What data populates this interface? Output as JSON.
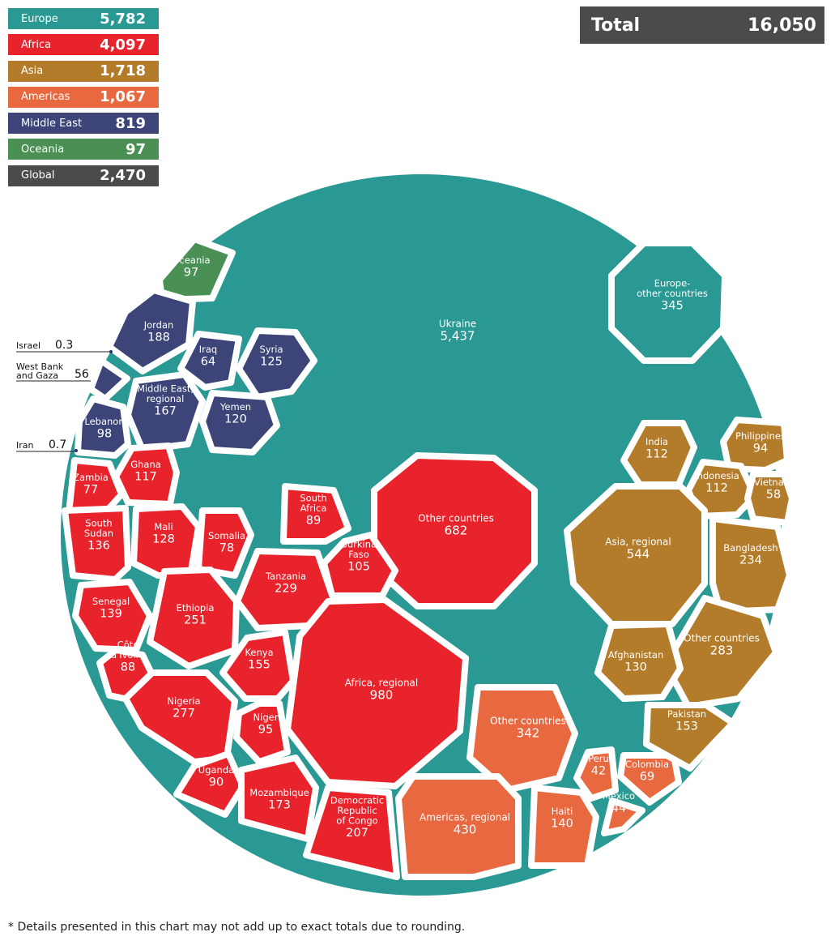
{
  "colors": {
    "Europe": "#2a9893",
    "Africa": "#e8232b",
    "Asia": "#b37c2b",
    "Americas": "#e8683f",
    "Middle East": "#3c4478",
    "Oceania": "#4a9055",
    "Global": "#4a4c4c"
  },
  "legend": [
    {
      "label": "Europe",
      "value": "5,782"
    },
    {
      "label": "Africa",
      "value": "4,097"
    },
    {
      "label": "Asia",
      "value": "1,718"
    },
    {
      "label": "Americas",
      "value": "1,067"
    },
    {
      "label": "Middle East",
      "value": "819"
    },
    {
      "label": "Oceania",
      "value": "97"
    },
    {
      "label": "Global",
      "value": "2,470"
    }
  ],
  "total": {
    "label": "Total",
    "value": "16,050"
  },
  "footnote": "* Details presented in this chart may not add up to exact totals due to rounding.",
  "chart_data": {
    "type": "voronoi-treemap",
    "cells": [
      {
        "region": "Europe",
        "label": "Ukraine",
        "value": 5437
      },
      {
        "region": "Europe",
        "label": "Europe-\nother countries",
        "value": 345
      },
      {
        "region": "Oceania",
        "label": "Oceania",
        "value": 97
      },
      {
        "region": "Middle East",
        "label": "Jordan",
        "value": 188
      },
      {
        "region": "Middle East",
        "label": "Iraq",
        "value": 64
      },
      {
        "region": "Middle East",
        "label": "Syria",
        "value": 125
      },
      {
        "region": "Middle East",
        "label": "Middle East,\nregional",
        "value": 167
      },
      {
        "region": "Middle East",
        "label": "Yemen",
        "value": 120
      },
      {
        "region": "Middle East",
        "label": "Lebanon",
        "value": 98
      },
      {
        "region": "Middle East",
        "label": "West Bank\nand Gaza",
        "value": 56,
        "external": true
      },
      {
        "region": "Middle East",
        "label": "Israel",
        "value": 0.3,
        "external": true
      },
      {
        "region": "Middle East",
        "label": "Iran",
        "value": 0.7,
        "external": true
      },
      {
        "region": "Africa",
        "label": "Zambia",
        "value": 77
      },
      {
        "region": "Africa",
        "label": "Ghana",
        "value": 117
      },
      {
        "region": "Africa",
        "label": "South\nSudan",
        "value": 136
      },
      {
        "region": "Africa",
        "label": "Mali",
        "value": 128
      },
      {
        "region": "Africa",
        "label": "Somalia",
        "value": 78
      },
      {
        "region": "Africa",
        "label": "South\nAfrica",
        "value": 89
      },
      {
        "region": "Africa",
        "label": "Other countries",
        "value": 682
      },
      {
        "region": "Africa",
        "label": "Burkina\nFaso",
        "value": 105
      },
      {
        "region": "Africa",
        "label": "Tanzania",
        "value": 229
      },
      {
        "region": "Africa",
        "label": "Senegal",
        "value": 139
      },
      {
        "region": "Africa",
        "label": "Ethiopia",
        "value": 251
      },
      {
        "region": "Africa",
        "label": "Côte\nd'Ivoire",
        "value": 88
      },
      {
        "region": "Africa",
        "label": "Kenya",
        "value": 155
      },
      {
        "region": "Africa",
        "label": "Africa, regional",
        "value": 980
      },
      {
        "region": "Africa",
        "label": "Nigeria",
        "value": 277
      },
      {
        "region": "Africa",
        "label": "Niger",
        "value": 95
      },
      {
        "region": "Africa",
        "label": "Uganda",
        "value": 90
      },
      {
        "region": "Africa",
        "label": "Mozambique",
        "value": 173
      },
      {
        "region": "Africa",
        "label": "Democratic\nRepublic\nof Congo",
        "value": 207
      },
      {
        "region": "Americas",
        "label": "Other countries",
        "value": 342
      },
      {
        "region": "Americas",
        "label": "Americas, regional",
        "value": 430
      },
      {
        "region": "Americas",
        "label": "Haiti",
        "value": 140
      },
      {
        "region": "Americas",
        "label": "Peru",
        "value": 42
      },
      {
        "region": "Americas",
        "label": "Mexico",
        "value": 44
      },
      {
        "region": "Americas",
        "label": "Colombia",
        "value": 69
      },
      {
        "region": "Asia",
        "label": "India",
        "value": 112
      },
      {
        "region": "Asia",
        "label": "Philippines",
        "value": 94
      },
      {
        "region": "Asia",
        "label": "Indonesia",
        "value": 112
      },
      {
        "region": "Asia",
        "label": "Vietnam",
        "value": 58
      },
      {
        "region": "Asia",
        "label": "Asia, regional",
        "value": 544
      },
      {
        "region": "Asia",
        "label": "Bangladesh",
        "value": 234
      },
      {
        "region": "Asia",
        "label": "Other countries",
        "value": 283
      },
      {
        "region": "Asia",
        "label": "Afghanistan",
        "value": 130
      },
      {
        "region": "Asia",
        "label": "Pakistan",
        "value": 153
      }
    ]
  }
}
